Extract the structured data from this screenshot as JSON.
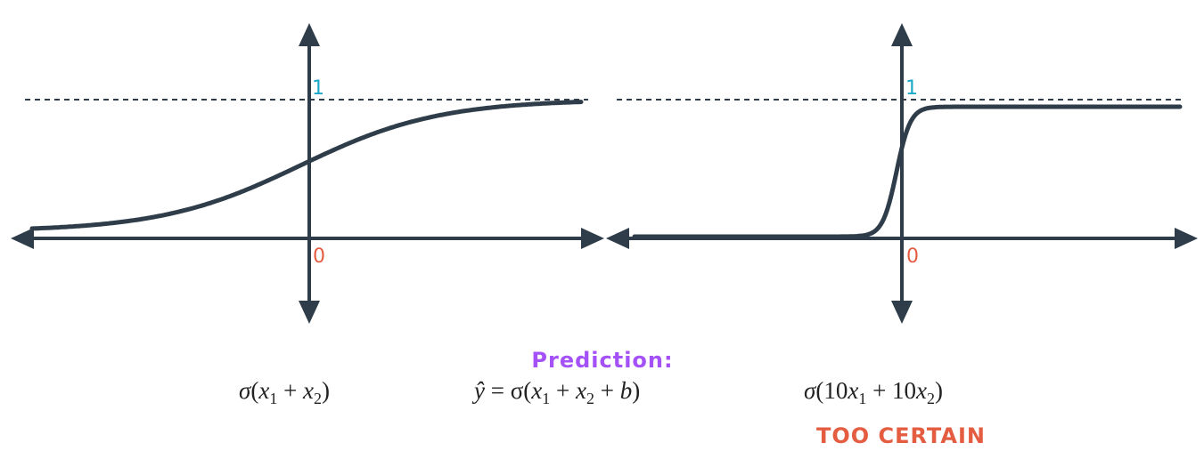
{
  "colors": {
    "axis": "#2e3d49",
    "curve": "#2e3d49",
    "one_label": "#1aa8c9",
    "zero_label": "#e45d41",
    "prediction": "#a451f7",
    "warning": "#e45d41"
  },
  "left_plot": {
    "one_label": "1",
    "zero_label": "0",
    "formula": {
      "sigma": "σ",
      "open": "(",
      "x1": "x",
      "s1": "1",
      "plus": " + ",
      "x2": "x",
      "s2": "2",
      "close": ")"
    },
    "steepness": 1
  },
  "right_plot": {
    "one_label": "1",
    "zero_label": "0",
    "formula": {
      "sigma": "σ",
      "open": "(10",
      "x1": "x",
      "s1": "1",
      "plus": " + 10",
      "x2": "x",
      "s2": "2",
      "close": ")"
    },
    "caption": "TOO CERTAIN",
    "steepness": 10
  },
  "prediction": {
    "title": "Prediction:",
    "formula": {
      "yhat": "ŷ",
      "eq": " = σ(",
      "x1": "x",
      "s1": "1",
      "plus1": " + ",
      "x2": "x",
      "s2": "2",
      "plus2": " + ",
      "b": "b",
      "close": ")"
    }
  }
}
